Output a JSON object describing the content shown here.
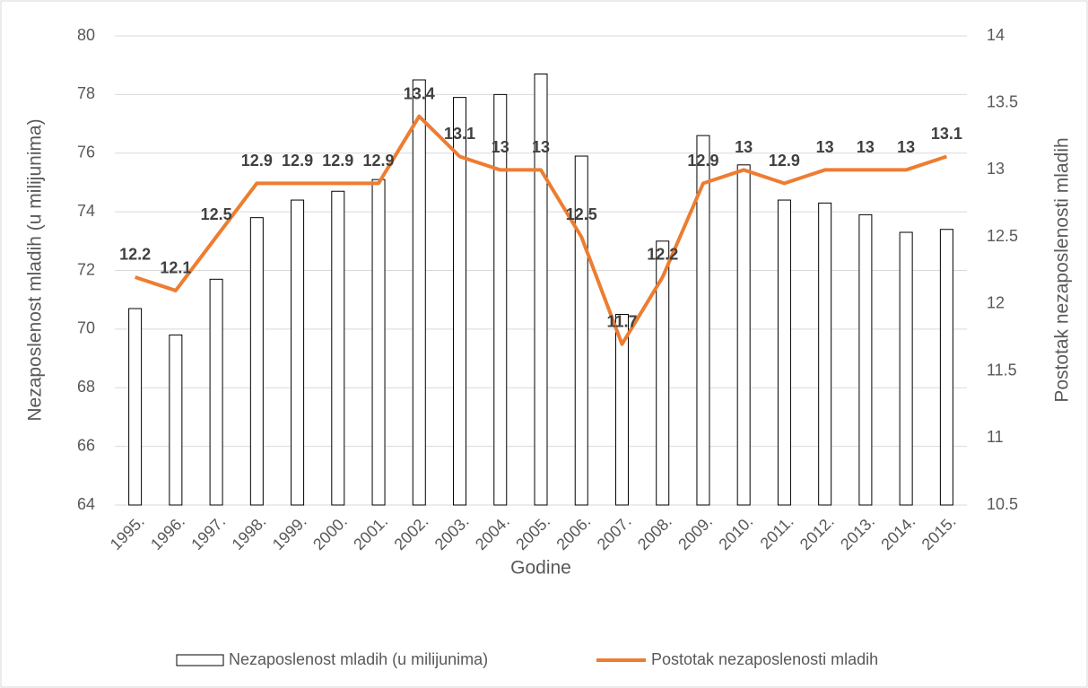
{
  "chart_data": {
    "type": "bar",
    "x_label": "Godine",
    "y_label": "Nezaposlenost mladih (u milijunima)",
    "y2_label": "Postotak nezaposlenosti mladih",
    "categories": [
      "1995.",
      "1996.",
      "1997.",
      "1998.",
      "1999.",
      "2000.",
      "2001.",
      "2002.",
      "2003.",
      "2004.",
      "2005.",
      "2006.",
      "2007.",
      "2008.",
      "2009.",
      "2010.",
      "2011.",
      "2012.",
      "2013.",
      "2014.",
      "2015."
    ],
    "series": [
      {
        "name": "Nezaposlenost mladih (u milijunima)",
        "type": "bar",
        "color": "#ffffff",
        "stroke": "#000000",
        "values": [
          70.7,
          69.8,
          71.7,
          73.8,
          74.4,
          74.7,
          75.1,
          78.5,
          77.9,
          78.0,
          78.7,
          75.9,
          70.5,
          73.0,
          76.6,
          75.6,
          74.4,
          74.3,
          73.9,
          73.3,
          73.4
        ]
      },
      {
        "name": "Postotak nezaposlenosti mladih",
        "type": "line",
        "axis": "y2",
        "color": "#ed7d31",
        "values": [
          12.2,
          12.1,
          12.5,
          12.9,
          12.9,
          12.9,
          12.9,
          13.4,
          13.1,
          13,
          13,
          12.5,
          11.7,
          12.2,
          12.9,
          13,
          12.9,
          13,
          13,
          13,
          13.1
        ]
      }
    ],
    "ylim": [
      64,
      80
    ],
    "yticks": [
      64,
      66,
      68,
      70,
      72,
      74,
      76,
      78,
      80
    ],
    "y2lim": [
      10.5,
      14
    ],
    "y2ticks": [
      10.5,
      11,
      11.5,
      12,
      12.5,
      13,
      13.5,
      14
    ],
    "grid": true,
    "legend": "bottom"
  }
}
